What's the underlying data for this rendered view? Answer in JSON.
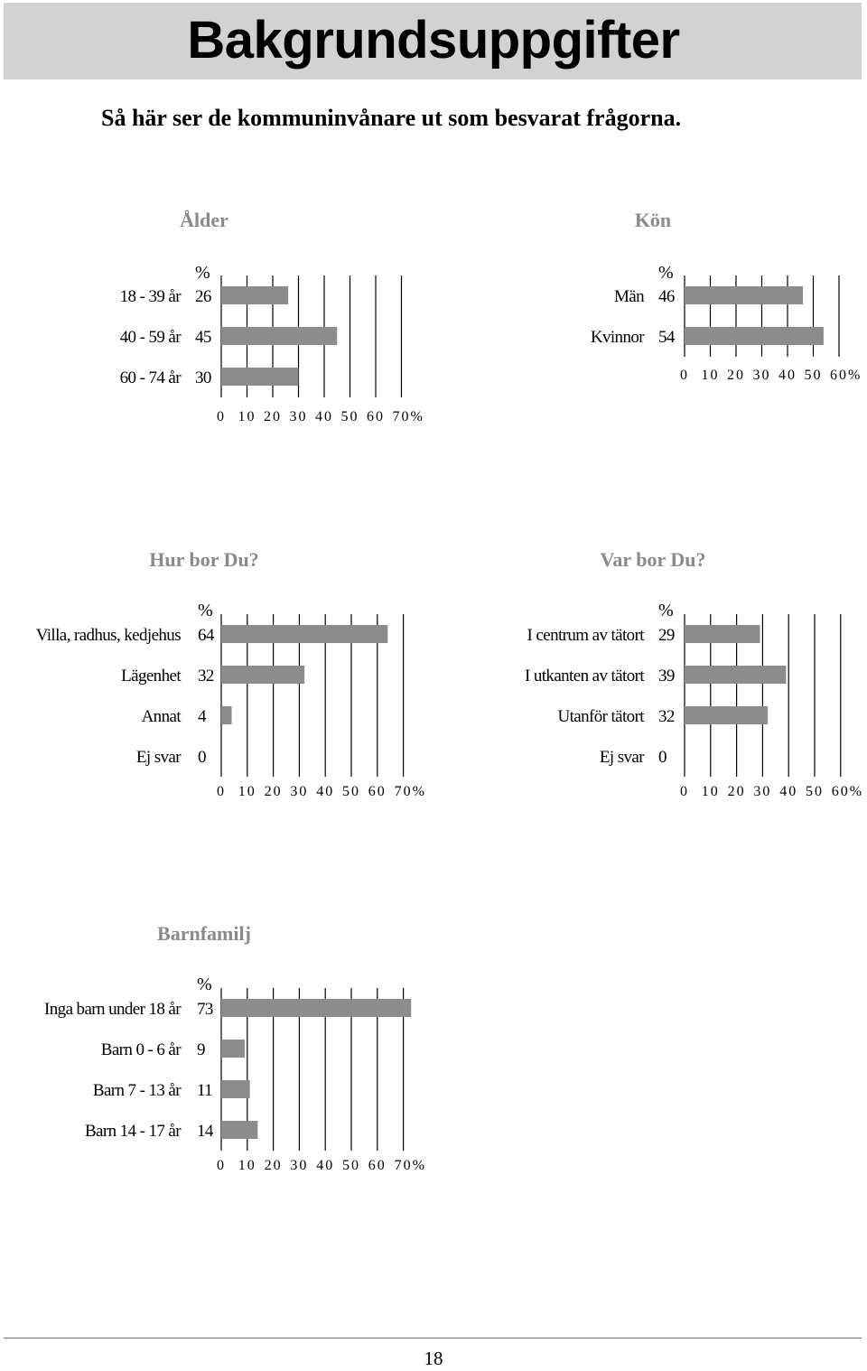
{
  "header": {
    "title": "Bakgrundsuppgifter",
    "subtitle": "Så här ser de kommuninvånare ut som besvarat frågorna."
  },
  "colors": {
    "bar": "#8c8c8c",
    "title_band": "#d2d2d2",
    "chart_title": "#8a8a8a",
    "grid": "#000000"
  },
  "chart_data": [
    {
      "type": "bar",
      "orientation": "horizontal",
      "title": "Ålder",
      "value_header": "%",
      "categories": [
        "18 - 39 år",
        "40 - 59 år",
        "60 - 74 år"
      ],
      "values": [
        26,
        45,
        30
      ],
      "xlim": [
        0,
        70
      ],
      "xticks": [
        0,
        10,
        20,
        30,
        40,
        50,
        60,
        70
      ],
      "xunit": "%",
      "grid": true
    },
    {
      "type": "bar",
      "orientation": "horizontal",
      "title": "Kön",
      "value_header": "%",
      "categories": [
        "Män",
        "Kvinnor"
      ],
      "values": [
        46,
        54
      ],
      "xlim": [
        0,
        60
      ],
      "xticks": [
        0,
        10,
        20,
        30,
        40,
        50,
        60
      ],
      "xunit": "%",
      "grid": true
    },
    {
      "type": "bar",
      "orientation": "horizontal",
      "title": "Hur bor Du?",
      "value_header": "%",
      "categories": [
        "Villa, radhus, kedjehus",
        "Lägenhet",
        "Annat",
        "Ej svar"
      ],
      "values": [
        64,
        32,
        4,
        0
      ],
      "xlim": [
        0,
        70
      ],
      "xticks": [
        0,
        10,
        20,
        30,
        40,
        50,
        60,
        70
      ],
      "xunit": "%",
      "grid": true
    },
    {
      "type": "bar",
      "orientation": "horizontal",
      "title": "Var bor Du?",
      "value_header": "%",
      "categories": [
        "I centrum av tätort",
        "I utkanten av tätort",
        "Utanför tätort",
        "Ej svar"
      ],
      "values": [
        29,
        39,
        32,
        0
      ],
      "xlim": [
        0,
        60
      ],
      "xticks": [
        0,
        10,
        20,
        30,
        40,
        50,
        60
      ],
      "xunit": "%",
      "grid": true
    },
    {
      "type": "bar",
      "orientation": "horizontal",
      "title": "Barnfamilj",
      "value_header": "%",
      "categories": [
        "Inga barn under 18 år",
        "Barn 0 - 6 år",
        "Barn 7 - 13 år",
        "Barn 14 - 17 år"
      ],
      "values": [
        73,
        9,
        11,
        14
      ],
      "xlim": [
        0,
        70
      ],
      "xticks": [
        0,
        10,
        20,
        30,
        40,
        50,
        60,
        70
      ],
      "xunit": "%",
      "grid": true
    }
  ],
  "footer": {
    "page_number": "18"
  }
}
